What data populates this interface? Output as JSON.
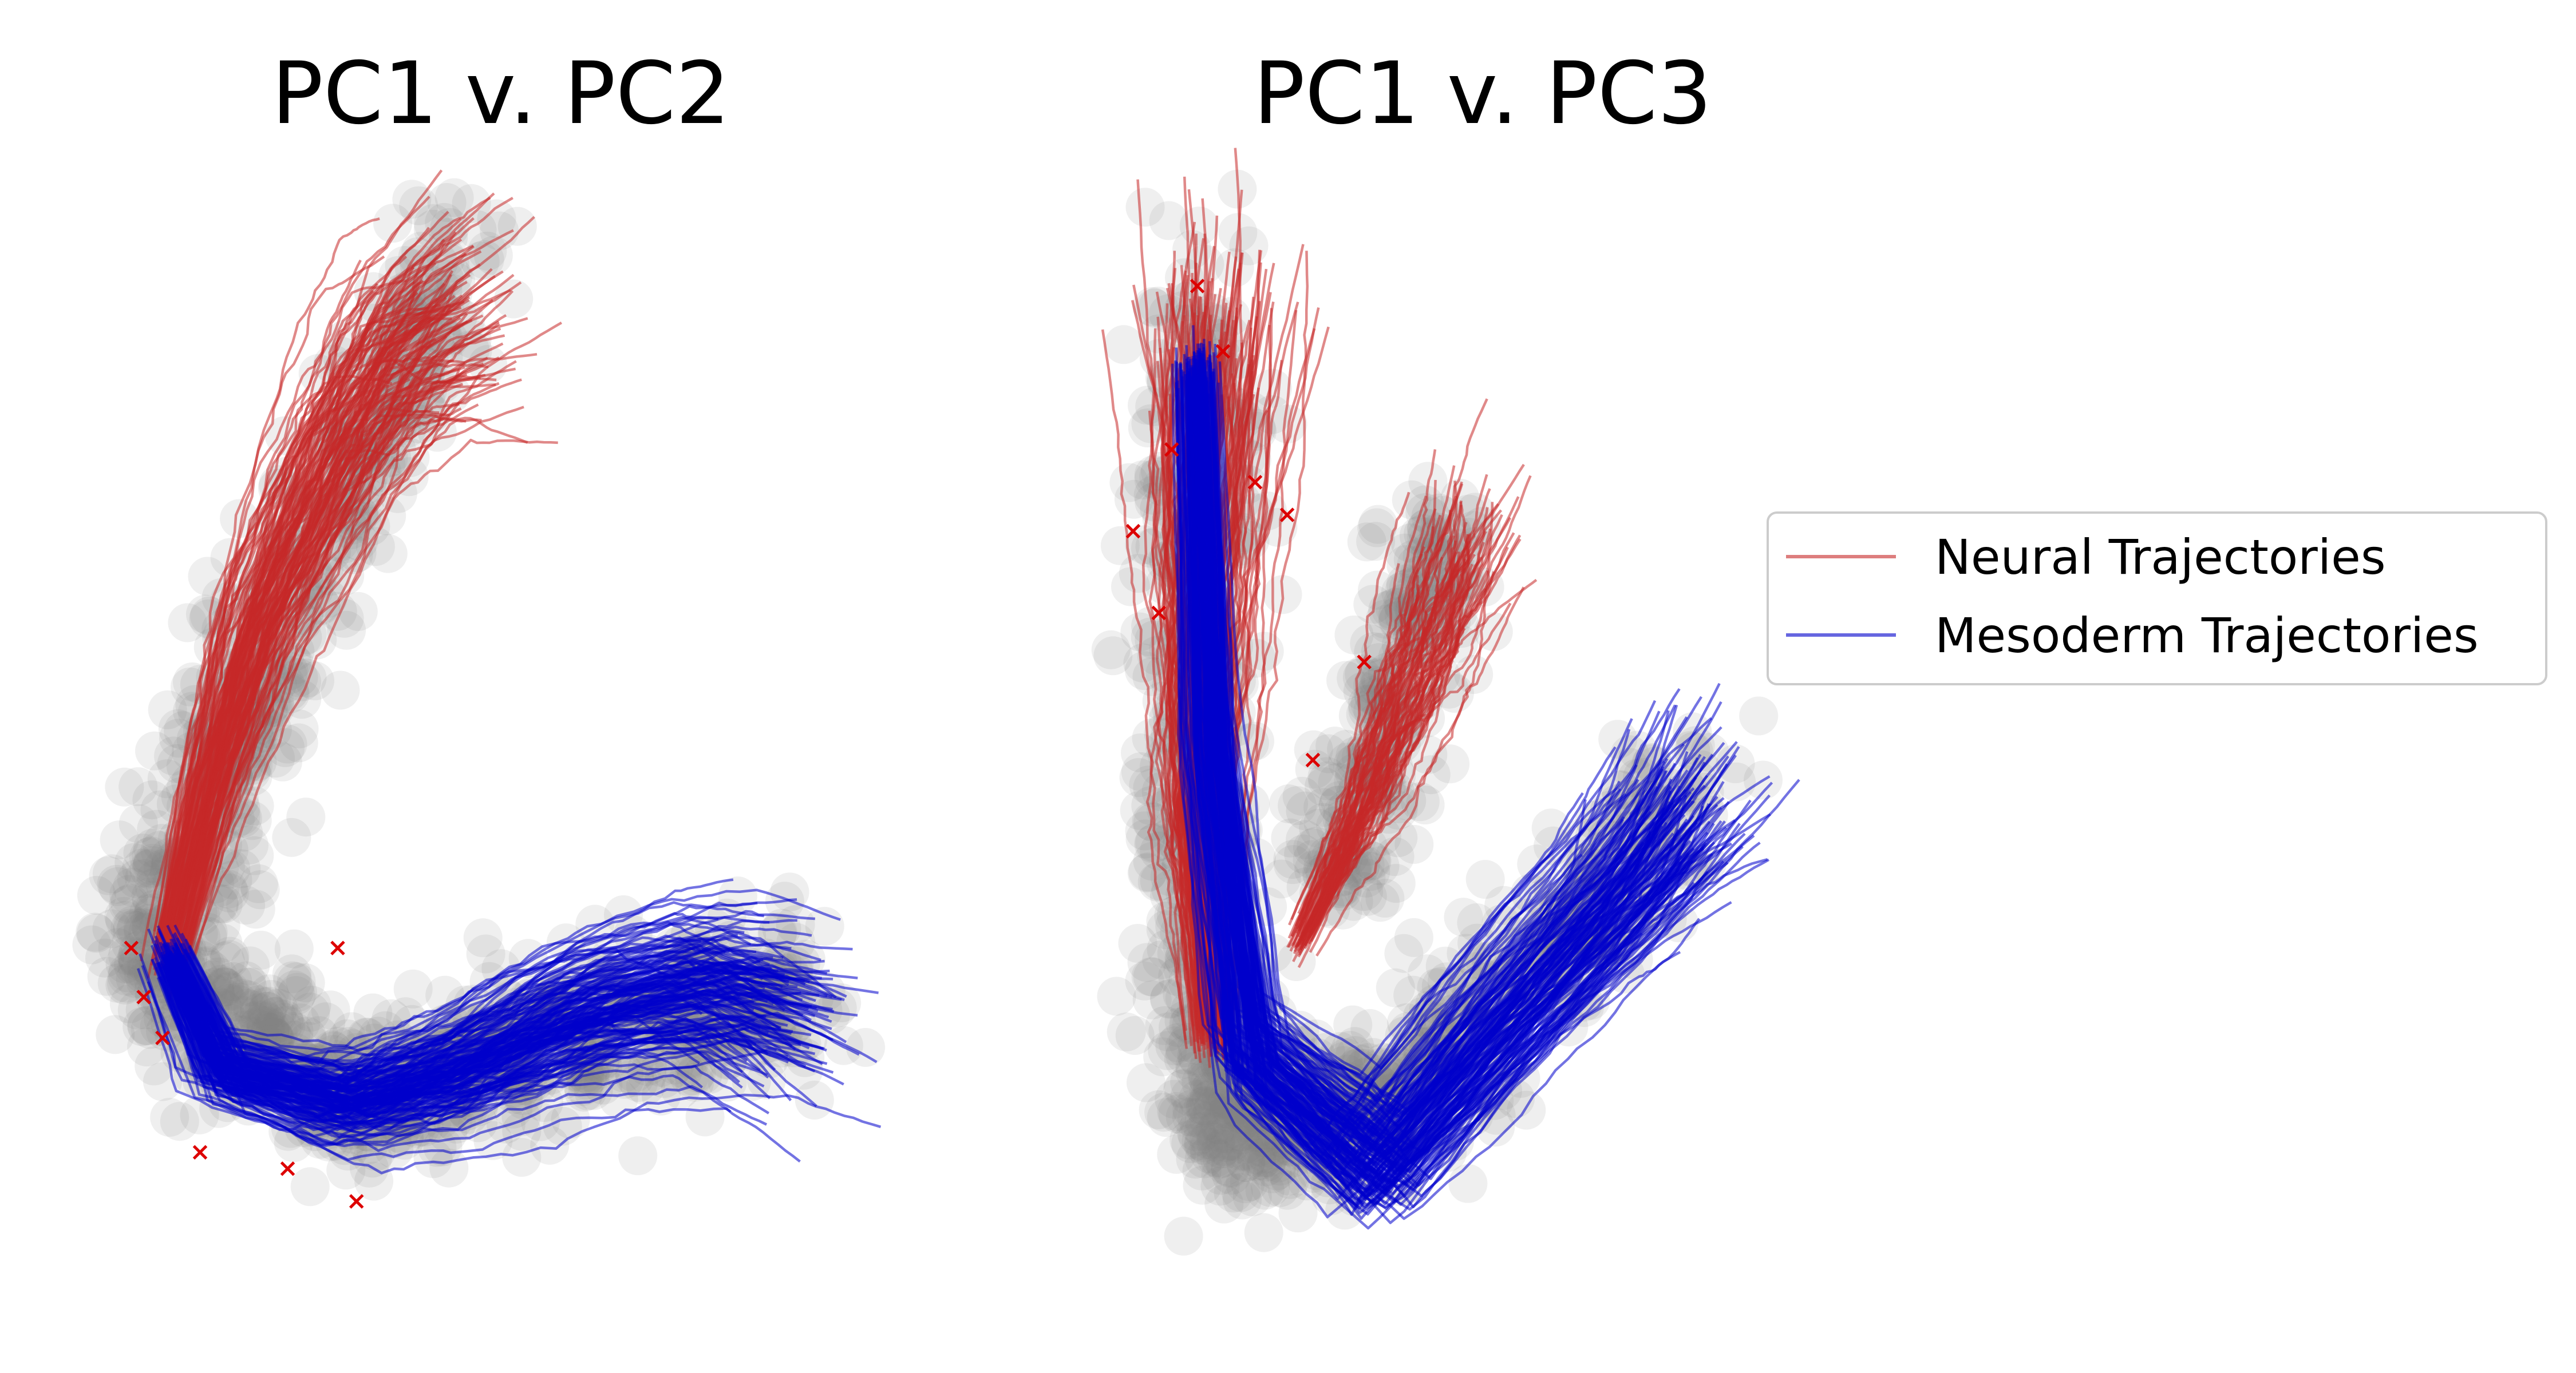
{
  "figure": {
    "legend": {
      "placement": "right",
      "entries": [
        {
          "label": "Neural Trajectories",
          "color": "#c62828"
        },
        {
          "label": "Mesoderm Trajectories",
          "color": "#0000cc"
        }
      ]
    },
    "colors": {
      "background_cells": "#808080",
      "neural": "#c62828",
      "mesoderm": "#0000cc",
      "endpoint_marker": "#dd0000"
    }
  },
  "chart_data": [
    {
      "type": "scatter",
      "title": "PC1 v. PC2",
      "xlabel": "",
      "ylabel": "",
      "axes_visible": false,
      "grid": false,
      "xlim": [
        -4,
        10
      ],
      "ylim": [
        -6,
        8
      ],
      "background_cloud": {
        "color": "#808080",
        "arms": [
          {
            "from": [
              2.3,
              7.2
            ],
            "to": [
              -0.9,
              2.0
            ],
            "spread": 0.9
          },
          {
            "from": [
              -0.9,
              2.0
            ],
            "to": [
              -2.8,
              -1.8
            ],
            "spread": 0.9
          },
          {
            "from": [
              -2.8,
              -1.8
            ],
            "to": [
              0.5,
              -3.4
            ],
            "spread": 0.9
          },
          {
            "from": [
              0.5,
              -3.4
            ],
            "to": [
              4.0,
              -2.6
            ],
            "spread": 0.8
          },
          {
            "from": [
              4.0,
              -2.6
            ],
            "to": [
              7.8,
              -2.0
            ],
            "spread": 0.9
          }
        ]
      },
      "series": [
        {
          "name": "Neural Trajectories",
          "color": "#c62828",
          "n_trajectories": 120,
          "mean_path": [
            [
              -2.4,
              -1.6
            ],
            [
              -1.8,
              0.4
            ],
            [
              -1.0,
              2.6
            ],
            [
              0.2,
              4.6
            ],
            [
              1.2,
              5.8
            ],
            [
              2.2,
              6.2
            ]
          ],
          "endpoints_start": [
            [
              -3.0,
              -1.5
            ],
            [
              -2.8,
              -2.1
            ],
            [
              -2.5,
              -2.6
            ],
            [
              -1.9,
              -4.0
            ],
            [
              -0.5,
              -4.2
            ],
            [
              0.6,
              -4.6
            ],
            [
              0.3,
              -1.5
            ]
          ]
        },
        {
          "name": "Mesoderm Trajectories",
          "color": "#0000cc",
          "n_trajectories": 150,
          "mean_path": [
            [
              -2.4,
              -1.6
            ],
            [
              -1.6,
              -3.0
            ],
            [
              0.4,
              -3.4
            ],
            [
              2.2,
              -3.0
            ],
            [
              4.2,
              -2.3
            ],
            [
              6.2,
              -2.0
            ],
            [
              7.4,
              -2.3
            ]
          ]
        }
      ]
    },
    {
      "type": "scatter",
      "title": "PC1 v. PC3",
      "xlabel": "",
      "ylabel": "",
      "axes_visible": false,
      "grid": false,
      "xlim": [
        -4,
        10
      ],
      "ylim": [
        -6,
        8
      ],
      "background_cloud": {
        "color": "#808080",
        "arms": [
          {
            "from": [
              -1.2,
              6.8
            ],
            "to": [
              -1.5,
              0.0
            ],
            "spread": 0.9
          },
          {
            "from": [
              -1.5,
              0.0
            ],
            "to": [
              -1.0,
              -3.8
            ],
            "spread": 0.9
          },
          {
            "from": [
              -1.0,
              -3.8
            ],
            "to": [
              1.8,
              -3.4
            ],
            "spread": 0.8
          },
          {
            "from": [
              1.8,
              -3.4
            ],
            "to": [
              6.5,
              0.6
            ],
            "spread": 0.9
          },
          {
            "from": [
              2.5,
              3.6
            ],
            "to": [
              0.6,
              -0.8
            ],
            "spread": 0.7
          }
        ]
      },
      "series": [
        {
          "name": "Neural Trajectories",
          "color": "#c62828",
          "n_trajectories": 120,
          "mean_path": [
            [
              -1.2,
              -2.6
            ],
            [
              -1.4,
              0.0
            ],
            [
              -1.3,
              3.2
            ],
            [
              -1.1,
              6.2
            ]
          ],
          "branch_path": [
            [
              0.2,
              -1.4
            ],
            [
              1.2,
              0.2
            ],
            [
              2.2,
              2.2
            ],
            [
              2.8,
              3.6
            ]
          ],
          "endpoints_start": [
            [
              -2.4,
              3.6
            ],
            [
              -2.0,
              2.6
            ],
            [
              -1.8,
              4.6
            ],
            [
              -1.4,
              6.6
            ],
            [
              -1.0,
              5.8
            ],
            [
              -0.5,
              4.2
            ],
            [
              0.0,
              3.8
            ],
            [
              1.2,
              2.0
            ],
            [
              0.4,
              0.8
            ]
          ]
        },
        {
          "name": "Mesoderm Trajectories",
          "color": "#0000cc",
          "n_trajectories": 150,
          "mean_path": [
            [
              -1.4,
              5.6
            ],
            [
              -1.2,
              1.0
            ],
            [
              -0.6,
              -2.8
            ],
            [
              1.4,
              -4.2
            ],
            [
              3.6,
              -2.2
            ],
            [
              5.4,
              -0.6
            ],
            [
              6.2,
              0.3
            ]
          ]
        }
      ]
    }
  ]
}
